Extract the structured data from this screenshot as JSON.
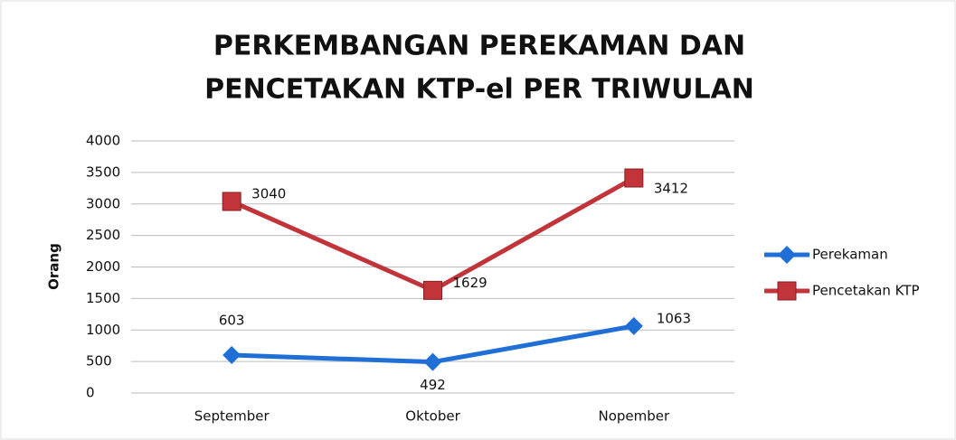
{
  "chart_data": {
    "type": "line",
    "title": [
      "PERKEMBANGAN PEREKAMAN DAN",
      "PENCETAKAN KTP-el PER TRIWULAN"
    ],
    "y_label": "Orang",
    "categories": [
      "September",
      "Oktober",
      "Nopember"
    ],
    "series": [
      {
        "name": "Perekaman",
        "color": "#1f6fd6",
        "marker": "diamond",
        "values": [
          603,
          492,
          1063
        ]
      },
      {
        "name": "Pencetakan KTP",
        "color": "#c0343a",
        "marker": "square",
        "values": [
          3040,
          1629,
          3412
        ]
      }
    ],
    "ylim": [
      0,
      4000
    ],
    "yticks": [
      0,
      500,
      1000,
      1500,
      2000,
      2500,
      3000,
      3500,
      4000
    ],
    "grid": true,
    "legend": "right"
  }
}
